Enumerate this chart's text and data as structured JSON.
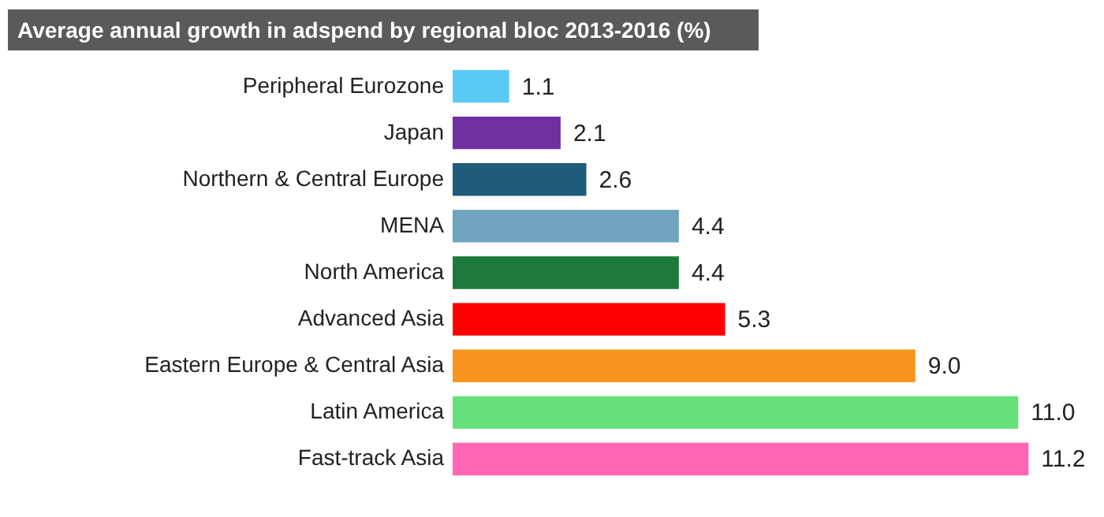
{
  "chart_data": {
    "type": "bar",
    "title": "Average annual growth in adspend by regional bloc 2013-2016 (%)",
    "orientation": "horizontal",
    "categories": [
      "Peripheral Eurozone",
      "Japan",
      "Northern & Central Europe",
      "MENA",
      "North America",
      "Advanced Asia",
      "Eastern Europe & Central Asia",
      "Latin America",
      "Fast-track Asia"
    ],
    "values": [
      1.1,
      2.1,
      2.6,
      4.4,
      4.4,
      5.3,
      9.0,
      11.0,
      11.2
    ],
    "colors": [
      "#5bcbf5",
      "#7030a0",
      "#1f5c7a",
      "#6fa3bf",
      "#1e7a3a",
      "#ff0000",
      "#f7941d",
      "#66e07a",
      "#ff66b3"
    ],
    "value_labels": [
      "1.1",
      "2.1",
      "2.6",
      "4.4",
      "4.4",
      "5.3",
      "9.0",
      "11.0",
      "11.2"
    ]
  }
}
